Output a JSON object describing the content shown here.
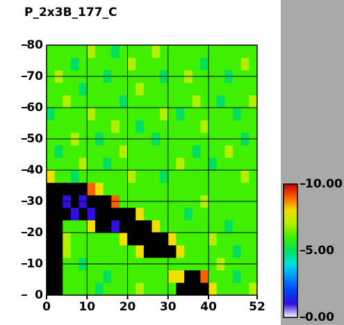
{
  "chart_data": {
    "type": "heatmap",
    "title": "P_2x3B_177_C",
    "x_edges": [
      0,
      2,
      4,
      6,
      8,
      10,
      12,
      14,
      16,
      18,
      20,
      22,
      24,
      26,
      28,
      30,
      32,
      34,
      36,
      38,
      40,
      42,
      44,
      46,
      48,
      50,
      52
    ],
    "y_edges": [
      0,
      4,
      8,
      12,
      16,
      20,
      24,
      28,
      32,
      36,
      40,
      44,
      48,
      52,
      56,
      60,
      64,
      68,
      72,
      76,
      80
    ],
    "z": [
      [
        null,
        null,
        6,
        6,
        6,
        6,
        5,
        6,
        6,
        6,
        6,
        7,
        6,
        6,
        6,
        6,
        null,
        null,
        null,
        null,
        8,
        6,
        6,
        6,
        6,
        7
      ],
      [
        null,
        null,
        6,
        6,
        6,
        6,
        6,
        5,
        6,
        6,
        6,
        6,
        6,
        6,
        6,
        8,
        8,
        null,
        null,
        9,
        6,
        6,
        6,
        5,
        6,
        6
      ],
      [
        null,
        null,
        6,
        6,
        5,
        6,
        6,
        6,
        6,
        6,
        6,
        6,
        6,
        6,
        6,
        6,
        6,
        6,
        6,
        6,
        6,
        7,
        6,
        6,
        6,
        6
      ],
      [
        null,
        null,
        7,
        6,
        6,
        6,
        6,
        6,
        6,
        6,
        6,
        8,
        null,
        null,
        null,
        null,
        8,
        6,
        6,
        6,
        6,
        6,
        6,
        5,
        6,
        6
      ],
      [
        null,
        null,
        7,
        6,
        6,
        6,
        6,
        6,
        6,
        8,
        null,
        null,
        null,
        null,
        null,
        8,
        6,
        6,
        6,
        6,
        7,
        6,
        6,
        6,
        6,
        6
      ],
      [
        null,
        null,
        6,
        6,
        6,
        8,
        null,
        null,
        1,
        null,
        null,
        null,
        null,
        8,
        6,
        6,
        6,
        6,
        6,
        6,
        6,
        6,
        5,
        6,
        6,
        6
      ],
      [
        null,
        null,
        null,
        1,
        null,
        1,
        null,
        null,
        null,
        null,
        null,
        8,
        6,
        6,
        6,
        6,
        6,
        5,
        6,
        6,
        6,
        6,
        6,
        6,
        6,
        6
      ],
      [
        null,
        null,
        1,
        null,
        1,
        null,
        null,
        null,
        9,
        6,
        6,
        6,
        6,
        6,
        6,
        6,
        6,
        6,
        6,
        7,
        6,
        6,
        6,
        6,
        6,
        6
      ],
      [
        null,
        null,
        null,
        null,
        null,
        9,
        8,
        6,
        6,
        6,
        6,
        6,
        6,
        6,
        6,
        6,
        6,
        6,
        6,
        6,
        6,
        6,
        6,
        6,
        6,
        6
      ],
      [
        8,
        6,
        6,
        5,
        6,
        6,
        6,
        6,
        6,
        6,
        7,
        6,
        6,
        6,
        5,
        6,
        6,
        6,
        6,
        6,
        6,
        6,
        6,
        6,
        7,
        6
      ],
      [
        6,
        6,
        6,
        6,
        7,
        6,
        6,
        5,
        6,
        6,
        6,
        6,
        6,
        6,
        6,
        6,
        7,
        6,
        6,
        6,
        5,
        6,
        6,
        6,
        6,
        6
      ],
      [
        6,
        5,
        6,
        6,
        6,
        6,
        6,
        6,
        6,
        7,
        6,
        6,
        6,
        6,
        6,
        6,
        6,
        6,
        5,
        6,
        6,
        6,
        7,
        6,
        6,
        6
      ],
      [
        6,
        6,
        6,
        7,
        6,
        6,
        5,
        6,
        6,
        6,
        6,
        6,
        6,
        5,
        6,
        6,
        6,
        6,
        6,
        6,
        6,
        6,
        6,
        6,
        5,
        6
      ],
      [
        6,
        6,
        6,
        6,
        6,
        6,
        6,
        6,
        7,
        6,
        6,
        5,
        6,
        6,
        6,
        6,
        6,
        6,
        6,
        7,
        6,
        6,
        6,
        6,
        6,
        6
      ],
      [
        5,
        6,
        6,
        6,
        6,
        7,
        6,
        6,
        6,
        6,
        6,
        6,
        6,
        6,
        7,
        6,
        5,
        6,
        6,
        6,
        6,
        6,
        6,
        5,
        6,
        6
      ],
      [
        6,
        6,
        7,
        6,
        6,
        6,
        6,
        6,
        6,
        5,
        6,
        6,
        6,
        6,
        6,
        6,
        6,
        6,
        7,
        6,
        6,
        5,
        6,
        6,
        6,
        7
      ],
      [
        6,
        6,
        6,
        6,
        5,
        6,
        6,
        6,
        6,
        6,
        6,
        7,
        6,
        6,
        6,
        6,
        6,
        6,
        6,
        6,
        6,
        6,
        6,
        6,
        6,
        6
      ],
      [
        6,
        7,
        6,
        6,
        6,
        6,
        6,
        5,
        6,
        6,
        6,
        6,
        6,
        6,
        5,
        6,
        6,
        7,
        6,
        6,
        6,
        6,
        5,
        6,
        6,
        6
      ],
      [
        6,
        6,
        6,
        5,
        6,
        6,
        6,
        6,
        6,
        6,
        7,
        6,
        6,
        6,
        6,
        6,
        6,
        6,
        6,
        5,
        6,
        6,
        6,
        6,
        7,
        6
      ],
      [
        6,
        6,
        6,
        6,
        6,
        7,
        6,
        6,
        5,
        6,
        6,
        6,
        6,
        7,
        6,
        6,
        6,
        6,
        6,
        6,
        6,
        6,
        6,
        6,
        6,
        6
      ]
    ],
    "xlim": [
      0,
      52
    ],
    "ylim": [
      0,
      80
    ],
    "xticks": [
      0,
      10,
      20,
      30,
      40,
      52
    ],
    "yticks": [
      0,
      10,
      20,
      30,
      40,
      50,
      60,
      70,
      80
    ],
    "grid": true,
    "null_color": "#000000",
    "colorscale": [
      "#ffffff",
      "#3010e0",
      "#0040ff",
      "#0090ff",
      "#00e0e0",
      "#00e060",
      "#40f000",
      "#b0f000",
      "#f0e000",
      "#ff6000",
      "#c00000"
    ],
    "zlim": [
      0,
      10
    ],
    "zticks": [
      {
        "value": 0,
        "label": "0.00"
      },
      {
        "value": 5,
        "label": "5.00"
      },
      {
        "value": 10,
        "label": "10.00"
      }
    ]
  }
}
